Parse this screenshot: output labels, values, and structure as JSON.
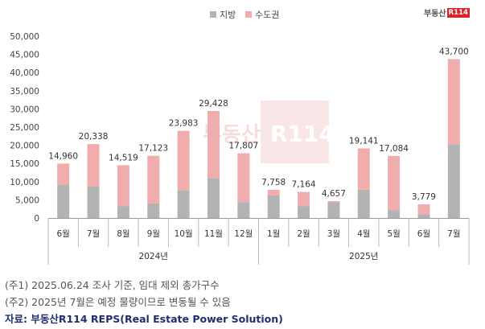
{
  "brand": {
    "text": "부동산",
    "box": "R114"
  },
  "legend": [
    {
      "label": "지방",
      "color": "#b3b3b3"
    },
    {
      "label": "수도권",
      "color": "#f0adad"
    }
  ],
  "notes": [
    "(주1) 2025.06.24 조사 기준, 임대 제외 총가구수",
    "(주2) 2025년 7월은 예정 물량이므로 변동될 수 있음"
  ],
  "source": "자료: 부동산R114 REPS(Real Estate Power Solution)",
  "chart_data": {
    "type": "bar",
    "stacked": true,
    "categories": [
      "6월",
      "7월",
      "8월",
      "9월",
      "10월",
      "11월",
      "12월",
      "1월",
      "2월",
      "3월",
      "4월",
      "5월",
      "6월",
      "7월"
    ],
    "groups": [
      {
        "label": "2024년",
        "count": 7
      },
      {
        "label": "2025년",
        "count": 7
      }
    ],
    "series": [
      {
        "name": "지방",
        "color": "#b3b3b3",
        "values": [
          9200,
          8700,
          3300,
          4000,
          7600,
          11000,
          4300,
          6200,
          3300,
          4300,
          7800,
          2100,
          1000,
          20300
        ]
      },
      {
        "name": "수도권",
        "color": "#f0adad",
        "values": [
          5760,
          11638,
          11219,
          13123,
          16383,
          18428,
          13507,
          1558,
          3864,
          357,
          11341,
          14984,
          2779,
          23400
        ]
      }
    ],
    "totals": [
      14960,
      20338,
      14519,
      17123,
      23983,
      29428,
      17807,
      7758,
      7164,
      4657,
      19141,
      17084,
      3779,
      43700
    ],
    "total_labels": [
      "14,960",
      "20,338",
      "14,519",
      "17,123",
      "23,983",
      "29,428",
      "17,807",
      "7,758",
      "7,164",
      "4,657",
      "19,141",
      "17,084",
      "3,779",
      "43,700"
    ],
    "y_ticks": [
      "0",
      "5,000",
      "10,000",
      "15,000",
      "20,000",
      "25,000",
      "30,000",
      "35,000",
      "40,000",
      "45,000",
      "50,000"
    ],
    "ylim": [
      0,
      50000
    ],
    "grid": false,
    "legend_position": "top-center",
    "watermark": {
      "text": "부동산",
      "box": "R114"
    }
  }
}
